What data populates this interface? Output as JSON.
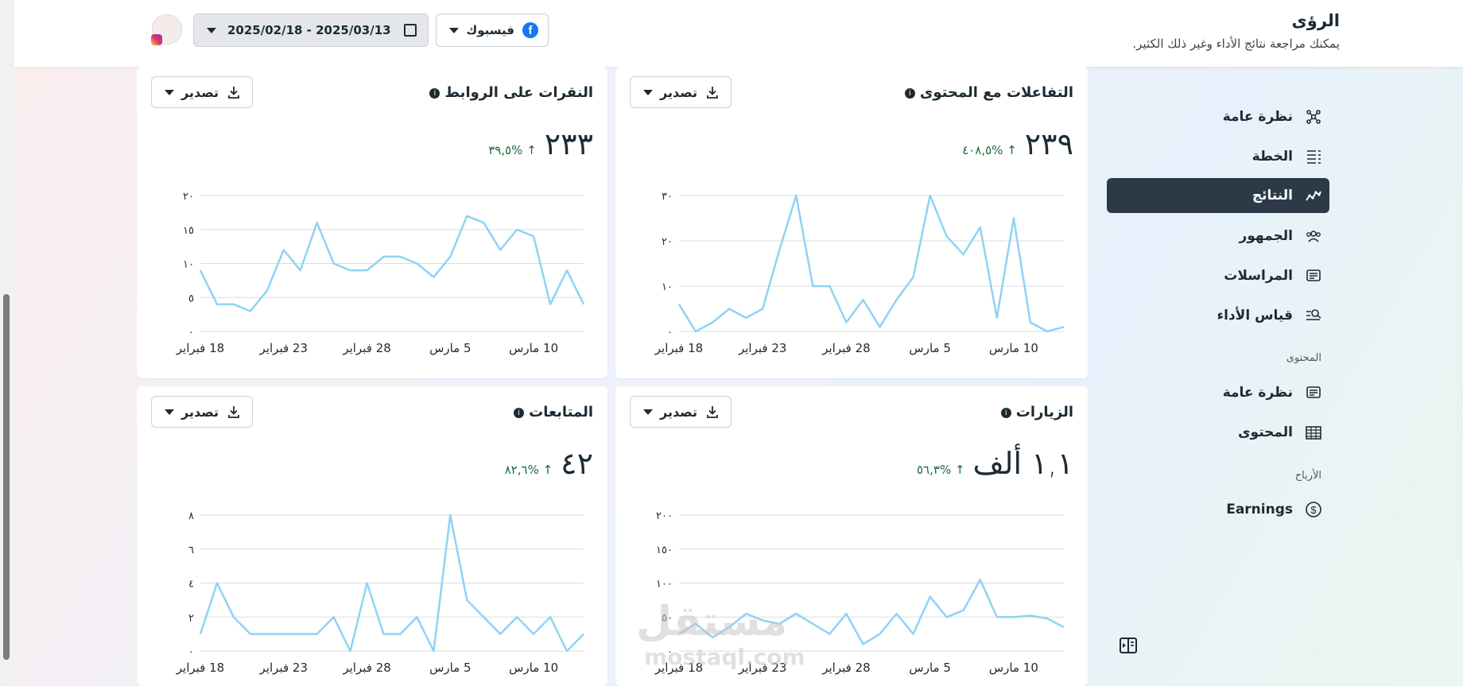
{
  "header": {
    "title": "الرؤى",
    "subtitle": "يمكنك مراجعة نتائج الأداء وغير ذلك الكثير.",
    "platform_label": "فيسبوك",
    "date_range": "2025/02/18 - 2025/03/13"
  },
  "sidebar": {
    "items": [
      {
        "label": "نظرة عامة",
        "icon": "network-icon",
        "active": false
      },
      {
        "label": "الخطة",
        "icon": "list-icon",
        "active": false
      },
      {
        "label": "النتائج",
        "icon": "trend-icon",
        "active": true
      },
      {
        "label": "الجمهور",
        "icon": "people-icon",
        "active": false
      },
      {
        "label": "المراسلات",
        "icon": "message-icon",
        "active": false
      },
      {
        "label": "قياس الأداء",
        "icon": "benchmark-icon",
        "active": false
      }
    ],
    "content_section": "المحتوى",
    "content_items": [
      {
        "label": "نظرة عامة",
        "icon": "content-overview-icon"
      },
      {
        "label": "المحتوى",
        "icon": "table-icon"
      }
    ],
    "monetization_section": "الأرباح",
    "monetization_items": [
      {
        "label": "Earnings",
        "icon": "dollar-icon"
      }
    ]
  },
  "export_label": "تصدير",
  "x_tick_labels": [
    "18 فبراير",
    "23 فبراير",
    "28 فبراير",
    "5 مارس",
    "10 مارس"
  ],
  "cards": [
    {
      "title": "التفاعلات مع المحتوى",
      "value": "٢٣٩",
      "delta": "↑ %٤٠٨,٥",
      "y_tick_labels": [
        "٠",
        "١٠",
        "٢٠",
        "٣٠"
      ]
    },
    {
      "title": "النقرات على الروابط",
      "value": "٢٣٣",
      "delta": "↑ %٣٩,٥",
      "y_tick_labels": [
        "٠",
        "٥",
        "١٠",
        "١٥",
        "٢٠"
      ]
    },
    {
      "title": "الزيارات",
      "value": "١,١ ألف",
      "delta": "↑ %٥٦,٣",
      "y_tick_labels": [
        "٠",
        "٥٠",
        "١٠٠",
        "١٥٠",
        "٢٠٠"
      ]
    },
    {
      "title": "المتابعات",
      "value": "٤٢",
      "delta": "↑ %٨٢,٦",
      "y_tick_labels": [
        "٠",
        "٢",
        "٤",
        "٦",
        "٨"
      ]
    }
  ],
  "chart_data": [
    {
      "type": "line",
      "title": "التفاعلات مع المحتوى",
      "x": [
        "2025-02-18",
        "2025-02-19",
        "2025-02-20",
        "2025-02-21",
        "2025-02-22",
        "2025-02-23",
        "2025-02-24",
        "2025-02-25",
        "2025-02-26",
        "2025-02-27",
        "2025-02-28",
        "2025-03-01",
        "2025-03-02",
        "2025-03-03",
        "2025-03-04",
        "2025-03-05",
        "2025-03-06",
        "2025-03-07",
        "2025-03-08",
        "2025-03-09",
        "2025-03-10",
        "2025-03-11",
        "2025-03-12",
        "2025-03-13"
      ],
      "series": [
        {
          "values": [
            6,
            0,
            2,
            5,
            3,
            5,
            18,
            30,
            10,
            10,
            2,
            7,
            1,
            7,
            12,
            30,
            21,
            17,
            23,
            3,
            25,
            2,
            0,
            1
          ]
        }
      ],
      "ylim": [
        0,
        30
      ],
      "color": "#8fd3f4"
    },
    {
      "type": "line",
      "title": "النقرات على الروابط",
      "x": [
        "2025-02-18",
        "2025-02-19",
        "2025-02-20",
        "2025-02-21",
        "2025-02-22",
        "2025-02-23",
        "2025-02-24",
        "2025-02-25",
        "2025-02-26",
        "2025-02-27",
        "2025-02-28",
        "2025-03-01",
        "2025-03-02",
        "2025-03-03",
        "2025-03-04",
        "2025-03-05",
        "2025-03-06",
        "2025-03-07",
        "2025-03-08",
        "2025-03-09",
        "2025-03-10",
        "2025-03-11",
        "2025-03-12",
        "2025-03-13"
      ],
      "series": [
        {
          "values": [
            9,
            4,
            4,
            3,
            6,
            12,
            9,
            16,
            10,
            9,
            9,
            11,
            11,
            10,
            8,
            11,
            17,
            16,
            12,
            15,
            14,
            4,
            9,
            4
          ]
        }
      ],
      "ylim": [
        0,
        20
      ],
      "color": "#8fd3f4"
    },
    {
      "type": "line",
      "title": "الزيارات",
      "x": [
        "2025-02-18",
        "2025-02-19",
        "2025-02-20",
        "2025-02-21",
        "2025-02-22",
        "2025-02-23",
        "2025-02-24",
        "2025-02-25",
        "2025-02-26",
        "2025-02-27",
        "2025-02-28",
        "2025-03-01",
        "2025-03-02",
        "2025-03-03",
        "2025-03-04",
        "2025-03-05",
        "2025-03-06",
        "2025-03-07",
        "2025-03-08",
        "2025-03-09",
        "2025-03-10",
        "2025-03-11",
        "2025-03-12",
        "2025-03-13"
      ],
      "series": [
        {
          "values": [
            25,
            40,
            20,
            35,
            55,
            45,
            40,
            55,
            40,
            25,
            55,
            10,
            25,
            55,
            25,
            80,
            50,
            60,
            105,
            50,
            50,
            52,
            48,
            35
          ]
        }
      ],
      "ylim": [
        0,
        200
      ],
      "color": "#8fd3f4"
    },
    {
      "type": "line",
      "title": "المتابعات",
      "x": [
        "2025-02-18",
        "2025-02-19",
        "2025-02-20",
        "2025-02-21",
        "2025-02-22",
        "2025-02-23",
        "2025-02-24",
        "2025-02-25",
        "2025-02-26",
        "2025-02-27",
        "2025-02-28",
        "2025-03-01",
        "2025-03-02",
        "2025-03-03",
        "2025-03-04",
        "2025-03-05",
        "2025-03-06",
        "2025-03-07",
        "2025-03-08",
        "2025-03-09",
        "2025-03-10",
        "2025-03-11",
        "2025-03-12",
        "2025-03-13"
      ],
      "series": [
        {
          "values": [
            1,
            4,
            2,
            1,
            1,
            1,
            1,
            1,
            2,
            0,
            4,
            1,
            1,
            2,
            0,
            8,
            3,
            2,
            1,
            2,
            1,
            2,
            0,
            1
          ]
        }
      ],
      "ylim": [
        0,
        8
      ],
      "color": "#8fd3f4"
    }
  ],
  "watermark": {
    "arabic": "مستقل",
    "latin": "mostaql.com"
  }
}
